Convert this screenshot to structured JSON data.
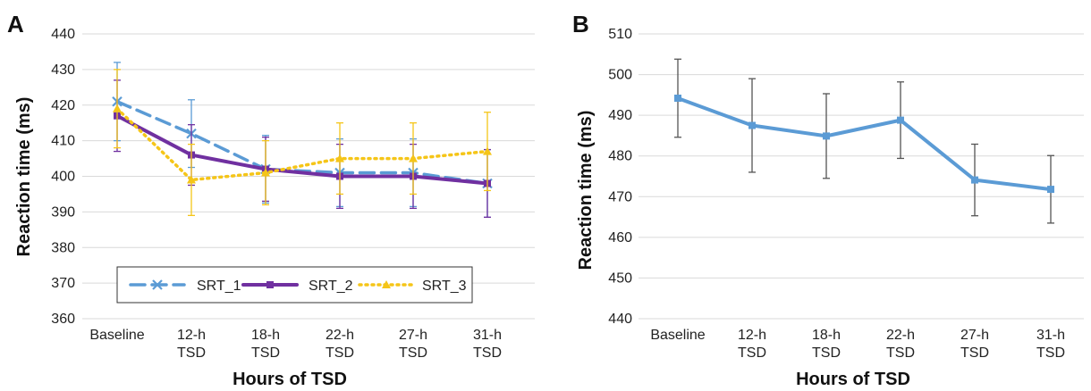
{
  "chart_data": [
    {
      "type": "line",
      "panel_label": "A",
      "categories": [
        "Baseline",
        "12-h TSD",
        "18-h TSD",
        "22-h TSD",
        "27-h TSD",
        "31-h TSD"
      ],
      "xlabel": "Hours of TSD",
      "ylabel": "Reaction time (ms)",
      "ylim": [
        360,
        440
      ],
      "yticks": [
        360,
        370,
        380,
        390,
        400,
        410,
        420,
        430,
        440
      ],
      "grid": true,
      "legend_position": "bottom-center",
      "series": [
        {
          "name": "SRT_1",
          "color": "#5b9bd5",
          "style": "dashed",
          "marker": "x",
          "values": [
            421,
            412,
            402,
            401,
            401,
            398
          ],
          "error": [
            11,
            9.5,
            9.5,
            9.5,
            9.5,
            9.5
          ]
        },
        {
          "name": "SRT_2",
          "color": "#7030a0",
          "style": "solid",
          "marker": "square",
          "values": [
            417,
            406,
            402,
            400,
            400,
            398
          ],
          "error": [
            10,
            8.5,
            9,
            9,
            9,
            9.5
          ]
        },
        {
          "name": "SRT_3",
          "color": "#f5c518",
          "style": "dotted",
          "marker": "triangle",
          "values": [
            419,
            399,
            401,
            405,
            405,
            407
          ],
          "error": [
            11,
            10,
            9,
            10,
            10,
            11
          ]
        }
      ]
    },
    {
      "type": "line",
      "panel_label": "B",
      "categories": [
        "Baseline",
        "12-h TSD",
        "18-h TSD",
        "22-h TSD",
        "27-h TSD",
        "31-h TSD"
      ],
      "xlabel": "Hours of TSD",
      "ylabel": "Reaction time (ms)",
      "ylim": [
        440,
        510
      ],
      "yticks": [
        440,
        450,
        460,
        470,
        480,
        490,
        500,
        510
      ],
      "grid": true,
      "series": [
        {
          "name": "",
          "color": "#5b9bd5",
          "style": "solid",
          "marker": "square",
          "values": [
            494.2,
            487.5,
            484.9,
            488.8,
            474.1,
            471.8
          ],
          "error": [
            9.6,
            11.5,
            10.4,
            9.4,
            8.8,
            8.3
          ]
        }
      ]
    }
  ]
}
